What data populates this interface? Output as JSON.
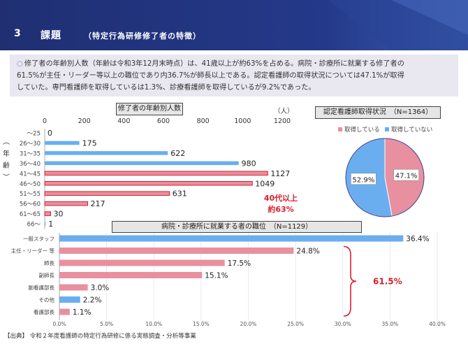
{
  "header": {
    "section_number": "3",
    "title": "課題",
    "subtitle": "（特定行為研修修了者の特徴）"
  },
  "summary": {
    "line1": "修了者の年齢別人数（年齢は令和3年12月末時点）は、41歳以上が約63%を占める。病院・診療所に就業する修了者の",
    "line2": "61.5%が主任・リーダー等以上の職位であり内36.7%が師長以上である。認定看護師の取得状況については47.1%が取得",
    "line3": "していた。専門看護師を取得しているは1.3%、診療看護師を取得しているが9.2%であった。"
  },
  "colors": {
    "header_dark": "#1f2f72",
    "header_light": "#3c5fb0",
    "blue_bar": "#6aaef0",
    "pink_bar": "#e8909f",
    "red_accent": "#d81e2c"
  },
  "chart_data": [
    {
      "type": "bar",
      "title": "修了者の年齢別人数",
      "unit_label": "（人）",
      "ylabel": "（年齢）",
      "categories": [
        "〜25",
        "26〜30",
        "31〜35",
        "36〜40",
        "41〜45",
        "46〜50",
        "51〜55",
        "56〜60",
        "61〜65",
        "66〜"
      ],
      "values": [
        0,
        175,
        622,
        980,
        1127,
        1049,
        631,
        217,
        30,
        1
      ],
      "highlight_from_index": 4,
      "xticks": [
        0,
        200,
        400,
        600,
        800,
        1000,
        1200
      ],
      "xlim": [
        0,
        1200
      ],
      "annotation": {
        "line1": "40代以上",
        "line2": "約63%"
      }
    },
    {
      "type": "pie",
      "title": "認定看護師取得状況　（N=1364）",
      "legend": [
        "取得している",
        "取得していない"
      ],
      "values": [
        47.1,
        52.9
      ],
      "labels": [
        "47.1%",
        "52.9%"
      ],
      "legend_position": "top"
    },
    {
      "type": "bar",
      "title": "病院・診療所に就業する者の職位　（N=1129）",
      "categories": [
        "一般スタッフ",
        "主任・リーダー 等",
        "師長",
        "副師長",
        "副看護部長",
        "その他",
        "看護部長"
      ],
      "values": [
        36.4,
        24.8,
        17.5,
        15.1,
        3.0,
        2.2,
        1.1
      ],
      "labels": [
        "36.4%",
        "24.8%",
        "17.5%",
        "15.1%",
        "3.0%",
        "2.2%",
        "1.1%"
      ],
      "bar_colors": [
        "blue",
        "pink",
        "pink",
        "pink",
        "pink",
        "blue",
        "pink"
      ],
      "xticks": [
        "0.0%",
        "5.0%",
        "10.0%",
        "15.0%",
        "20.0%",
        "25.0%",
        "30.0%",
        "35.0%",
        "40.0%"
      ],
      "xlim": [
        0,
        40
      ],
      "annotation": "61.5%"
    }
  ],
  "footer": {
    "source": "【出典】 令和２年度看護師の特定行為研修に係る実態調査・分析等事業"
  }
}
